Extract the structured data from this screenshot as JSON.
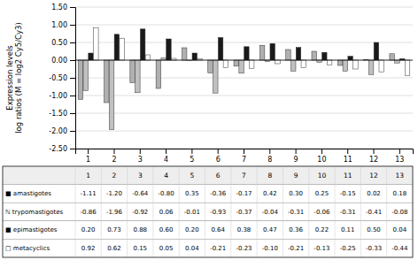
{
  "chart_data": {
    "type": "bar",
    "categories": [
      "1",
      "2",
      "3",
      "4",
      "5",
      "6",
      "7",
      "8",
      "9",
      "10",
      "11",
      "12",
      "13"
    ],
    "ylabel": "Expression levels\nlog ratios (M = log2 Cy5/Cy3)",
    "ylim": [
      -2.5,
      1.5
    ],
    "yticks": [
      {
        "value": -2.5,
        "label": "-2.50"
      },
      {
        "value": -2.0,
        "label": "-2.00"
      },
      {
        "value": -1.5,
        "label": "-1.50"
      },
      {
        "value": -1.0,
        "label": "-1.00"
      },
      {
        "value": -0.5,
        "label": "-0.50"
      },
      {
        "value": 0.0,
        "label": "0.00"
      },
      {
        "value": 0.5,
        "label": "0.50"
      },
      {
        "value": 1.0,
        "label": "1.00"
      },
      {
        "value": 1.5,
        "label": "1.50"
      }
    ],
    "grid": true,
    "data_labels": true,
    "series": [
      {
        "name": "■ amastigotes",
        "color": "#b0b0b0",
        "values": [
          -1.11,
          -1.2,
          -0.64,
          -0.8,
          0.35,
          -0.36,
          -0.17,
          0.42,
          0.3,
          0.25,
          -0.15,
          0.02,
          0.18
        ],
        "value_labels": [
          "-1.11",
          "-1.20",
          "-0.64",
          "-0.80",
          "0.35",
          "-0.36",
          "-0.17",
          "0.42",
          "0.30",
          "0.25",
          "-0.15",
          "0.02",
          "0.18"
        ]
      },
      {
        "name": "ℕ trypomastigotes",
        "color": "#c0c0c0",
        "values": [
          -0.86,
          -1.96,
          -0.92,
          0.06,
          -0.01,
          -0.93,
          -0.37,
          -0.04,
          -0.31,
          -0.06,
          -0.31,
          -0.41,
          -0.08
        ],
        "value_labels": [
          "-0.86",
          "-1.96",
          "-0.92",
          "0.06",
          "-0.01",
          "-0.93",
          "-0.37",
          "-0.04",
          "-0.31",
          "-0.06",
          "-0.31",
          "-0.41",
          "-0.08"
        ]
      },
      {
        "name": "■ epimastigotes",
        "color": "#1a1a1a",
        "values": [
          0.2,
          0.73,
          0.88,
          0.6,
          0.2,
          0.64,
          0.38,
          0.47,
          0.36,
          0.22,
          0.11,
          0.5,
          0.04
        ],
        "value_labels": [
          "0.20",
          "0.73",
          "0.88",
          "0.60",
          "0.20",
          "0.64",
          "0.38",
          "0.47",
          "0.36",
          "0.22",
          "0.11",
          "0.50",
          "0.04"
        ]
      },
      {
        "name": "□ metacyclics",
        "color": "#ffffff",
        "values": [
          0.92,
          0.62,
          0.15,
          0.05,
          0.04,
          -0.21,
          -0.23,
          -0.1,
          -0.21,
          -0.13,
          -0.25,
          -0.33,
          -0.44
        ],
        "value_labels": [
          "0.92",
          "0.62",
          "0.15",
          "0.05",
          "0.04",
          "-0.21",
          "-0.23",
          "-0.10",
          "-0.21",
          "-0.13",
          "-0.25",
          "-0.33",
          "-0.44"
        ]
      }
    ]
  }
}
